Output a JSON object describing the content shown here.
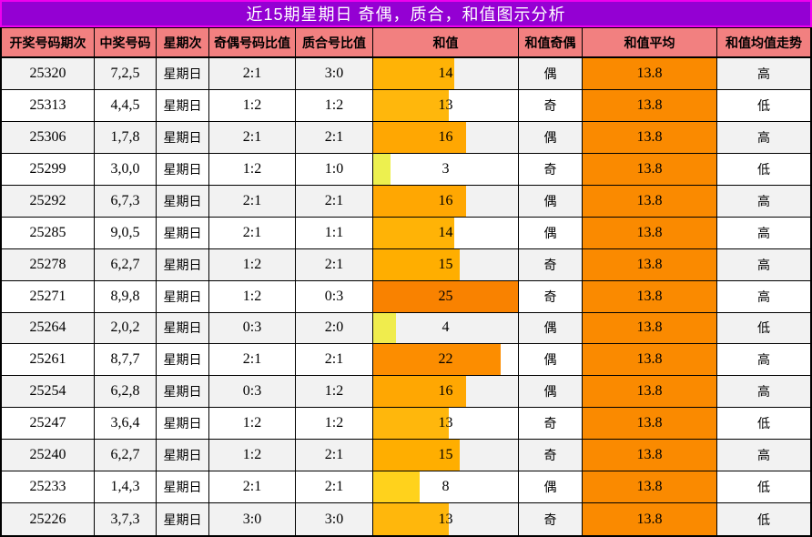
{
  "title": "近15期星期日 奇偶，质合，和值图示分析",
  "columns": [
    "开奖号码期次",
    "中奖号码",
    "星期次",
    "奇偶号码比值",
    "质合号比值",
    "和值",
    "和值奇偶",
    "和值平均",
    "和值均值走势"
  ],
  "rows": [
    {
      "period": "25320",
      "numbers": "7,2,5",
      "weekday": "星期日",
      "odd_even": "2:1",
      "prime_comp": "3:0",
      "sum": 14,
      "sum_parity": "偶",
      "sum_avg": "13.8",
      "trend": "高"
    },
    {
      "period": "25313",
      "numbers": "4,4,5",
      "weekday": "星期日",
      "odd_even": "1:2",
      "prime_comp": "1:2",
      "sum": 13,
      "sum_parity": "奇",
      "sum_avg": "13.8",
      "trend": "低"
    },
    {
      "period": "25306",
      "numbers": "1,7,8",
      "weekday": "星期日",
      "odd_even": "2:1",
      "prime_comp": "2:1",
      "sum": 16,
      "sum_parity": "偶",
      "sum_avg": "13.8",
      "trend": "高"
    },
    {
      "period": "25299",
      "numbers": "3,0,0",
      "weekday": "星期日",
      "odd_even": "1:2",
      "prime_comp": "1:0",
      "sum": 3,
      "sum_parity": "奇",
      "sum_avg": "13.8",
      "trend": "低"
    },
    {
      "period": "25292",
      "numbers": "6,7,3",
      "weekday": "星期日",
      "odd_even": "2:1",
      "prime_comp": "2:1",
      "sum": 16,
      "sum_parity": "偶",
      "sum_avg": "13.8",
      "trend": "高"
    },
    {
      "period": "25285",
      "numbers": "9,0,5",
      "weekday": "星期日",
      "odd_even": "2:1",
      "prime_comp": "1:1",
      "sum": 14,
      "sum_parity": "偶",
      "sum_avg": "13.8",
      "trend": "高"
    },
    {
      "period": "25278",
      "numbers": "6,2,7",
      "weekday": "星期日",
      "odd_even": "1:2",
      "prime_comp": "2:1",
      "sum": 15,
      "sum_parity": "奇",
      "sum_avg": "13.8",
      "trend": "高"
    },
    {
      "period": "25271",
      "numbers": "8,9,8",
      "weekday": "星期日",
      "odd_even": "1:2",
      "prime_comp": "0:3",
      "sum": 25,
      "sum_parity": "奇",
      "sum_avg": "13.8",
      "trend": "高"
    },
    {
      "period": "25264",
      "numbers": "2,0,2",
      "weekday": "星期日",
      "odd_even": "0:3",
      "prime_comp": "2:0",
      "sum": 4,
      "sum_parity": "偶",
      "sum_avg": "13.8",
      "trend": "低"
    },
    {
      "period": "25261",
      "numbers": "8,7,7",
      "weekday": "星期日",
      "odd_even": "2:1",
      "prime_comp": "2:1",
      "sum": 22,
      "sum_parity": "偶",
      "sum_avg": "13.8",
      "trend": "高"
    },
    {
      "period": "25254",
      "numbers": "6,2,8",
      "weekday": "星期日",
      "odd_even": "0:3",
      "prime_comp": "1:2",
      "sum": 16,
      "sum_parity": "偶",
      "sum_avg": "13.8",
      "trend": "高"
    },
    {
      "period": "25247",
      "numbers": "3,6,4",
      "weekday": "星期日",
      "odd_even": "1:2",
      "prime_comp": "1:2",
      "sum": 13,
      "sum_parity": "奇",
      "sum_avg": "13.8",
      "trend": "低"
    },
    {
      "period": "25240",
      "numbers": "6,2,7",
      "weekday": "星期日",
      "odd_even": "1:2",
      "prime_comp": "2:1",
      "sum": 15,
      "sum_parity": "奇",
      "sum_avg": "13.8",
      "trend": "高"
    },
    {
      "period": "25233",
      "numbers": "1,4,3",
      "weekday": "星期日",
      "odd_even": "2:1",
      "prime_comp": "2:1",
      "sum": 8,
      "sum_parity": "偶",
      "sum_avg": "13.8",
      "trend": "低"
    },
    {
      "period": "25226",
      "numbers": "3,7,3",
      "weekday": "星期日",
      "odd_even": "3:0",
      "prime_comp": "3:0",
      "sum": 13,
      "sum_parity": "奇",
      "sum_avg": "13.8",
      "trend": "低"
    }
  ],
  "chart_data": {
    "type": "bar",
    "orientation": "horizontal",
    "title": "近15期星期日 奇偶，质合，和值图示分析",
    "categories": [
      "25320",
      "25313",
      "25306",
      "25299",
      "25292",
      "25285",
      "25278",
      "25271",
      "25264",
      "25261",
      "25254",
      "25247",
      "25240",
      "25233",
      "25226"
    ],
    "values": [
      14,
      13,
      16,
      3,
      16,
      14,
      15,
      25,
      4,
      22,
      16,
      13,
      15,
      8,
      13
    ],
    "series_label": "和值",
    "average": 13.8,
    "xlim": [
      0,
      25
    ],
    "color_scale": "yellow-to-orange by value"
  },
  "colors": {
    "theme": {
      "title-bg": "#9400d3",
      "title-border": "#ee00ee",
      "title-text": "#ffffff",
      "header-bg": "#f28080",
      "row-alt-bg": "#f2f2f2",
      "row-bg": "#ffffff",
      "avg-fill": "#fa8a00",
      "grid": "#000000"
    },
    "bar_colors": {
      "3": "#edf04f",
      "4": "#f0ec4d",
      "8": "#ffd21c",
      "13": "#ffb70c",
      "14": "#ffb306",
      "15": "#ffae00",
      "16": "#ffa702",
      "22": "#fc8d00",
      "25": "#f98200"
    }
  }
}
